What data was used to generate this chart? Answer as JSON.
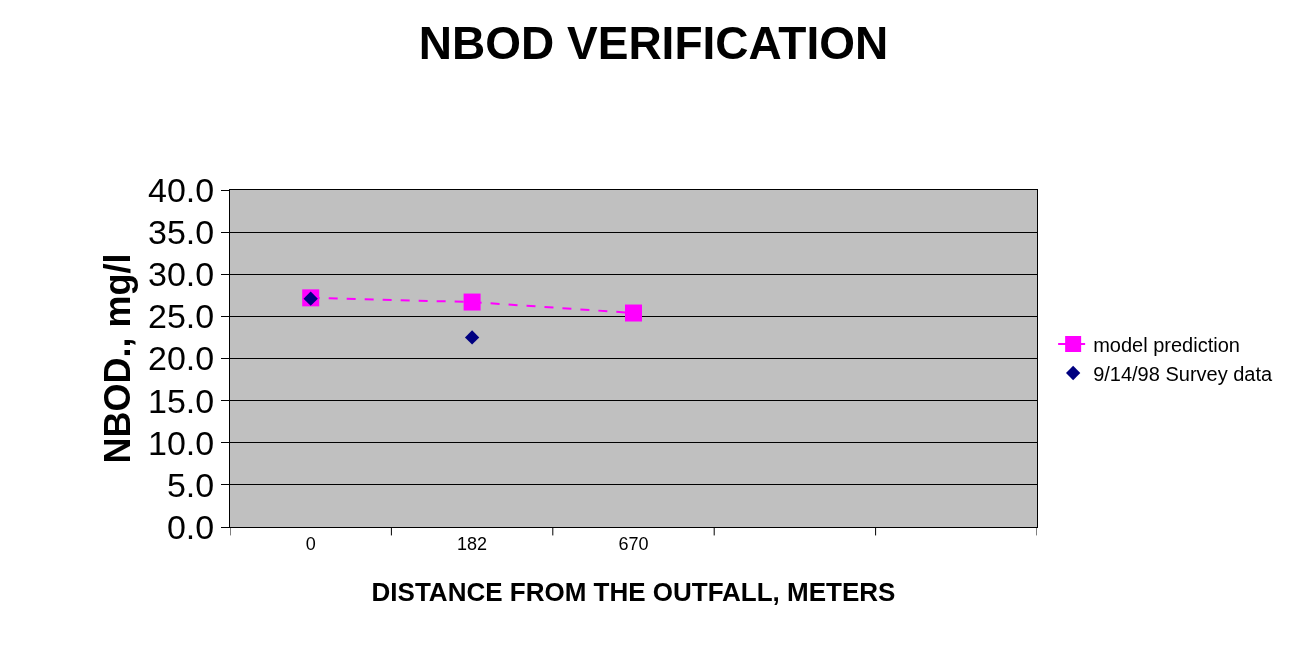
{
  "chart_data": {
    "type": "line",
    "title": "NBOD VERIFICATION",
    "xlabel": "DISTANCE FROM THE OUTFALL, METERS",
    "ylabel": "NBOD., mg/l",
    "categories": [
      "0",
      "182",
      "670",
      null,
      null
    ],
    "series": [
      {
        "name": "model prediction",
        "color": "#ff00ff",
        "marker": "square",
        "line_style": "dashed",
        "values": [
          27.2,
          26.7,
          25.4,
          null,
          null
        ]
      },
      {
        "name": "9/14/98 Survey data",
        "type": "scatter",
        "color": "#000080",
        "marker": "diamond",
        "values": [
          27.1,
          22.5,
          null,
          null,
          null
        ]
      }
    ],
    "ylim": [
      0,
      40
    ],
    "yticks": [
      {
        "value": 0,
        "label": "0.0"
      },
      {
        "value": 5,
        "label": "5.0"
      },
      {
        "value": 10,
        "label": "10.0"
      },
      {
        "value": 15,
        "label": "15.0"
      },
      {
        "value": 20,
        "label": "20.0"
      },
      {
        "value": 25,
        "label": "25.0"
      },
      {
        "value": 30,
        "label": "30.0"
      },
      {
        "value": 35,
        "label": "35.0"
      },
      {
        "value": 40,
        "label": "40.0"
      }
    ],
    "grid": "y",
    "legend": "right"
  }
}
